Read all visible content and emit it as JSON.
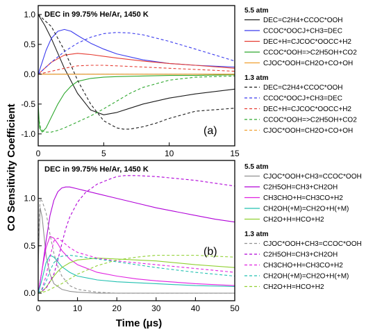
{
  "figure": {
    "ylabel": "CO Sensitivity Coefficient",
    "xlabel": "Time (μs)"
  },
  "chart_data": [
    {
      "type": "line",
      "panel_label": "(a)",
      "title": "DEC in 99.75% He/Ar, 1450 K",
      "xlim": [
        0,
        15
      ],
      "ylim": [
        -1.2,
        1.15
      ],
      "x_ticks": [
        0,
        5,
        10,
        15
      ],
      "y_ticks": [
        -1.0,
        -0.5,
        0.0,
        0.5,
        1.0
      ],
      "x_tick_labels": [
        "0",
        "5",
        "10",
        "15"
      ],
      "y_tick_labels": [
        "-1.0",
        "-0.5",
        "0.0",
        "0.5",
        "1.0"
      ],
      "zero_line": true,
      "legend_groups": [
        {
          "title": "5.5 atm",
          "dash": "solid"
        },
        {
          "title": "1.3 atm",
          "dash": "dashed"
        }
      ],
      "series": [
        {
          "name": "DEC=C2H4+CCOC*OOH",
          "group": 0,
          "color": "#1a1a1a",
          "x": [
            0,
            0.5,
            1,
            1.5,
            2,
            3,
            4,
            5,
            6,
            7,
            8,
            10,
            12,
            15
          ],
          "y": [
            1.0,
            0.82,
            0.6,
            0.35,
            0.1,
            -0.32,
            -0.6,
            -0.68,
            -0.64,
            -0.57,
            -0.5,
            -0.4,
            -0.33,
            -0.25
          ]
        },
        {
          "name": "CCOC*OOCJ+CH3=DEC",
          "group": 0,
          "color": "#3a3aee",
          "x": [
            0,
            0.3,
            0.6,
            1,
            1.5,
            2,
            2.5,
            3,
            4,
            5,
            6,
            8,
            10,
            12,
            15
          ],
          "y": [
            0.0,
            0.2,
            0.4,
            0.6,
            0.72,
            0.75,
            0.72,
            0.65,
            0.52,
            0.42,
            0.34,
            0.24,
            0.18,
            0.15,
            0.12
          ]
        },
        {
          "name": "DEC+H=CJCOC*OOCC+H2",
          "group": 0,
          "color": "#e63c32",
          "x": [
            0,
            0.5,
            1,
            2,
            3,
            4,
            5,
            6,
            8,
            10,
            12,
            15
          ],
          "y": [
            0.0,
            0.1,
            0.2,
            0.32,
            0.35,
            0.33,
            0.3,
            0.27,
            0.22,
            0.18,
            0.15,
            0.1
          ]
        },
        {
          "name": "CCOC*OOH=>C2H5OH+CO2",
          "group": 0,
          "color": "#2ea82e",
          "x": [
            0,
            0.1,
            0.3,
            0.6,
            1,
            1.5,
            2,
            2.5,
            3,
            4,
            5,
            6,
            8,
            10,
            12,
            15
          ],
          "y": [
            -0.5,
            -0.9,
            -0.97,
            -0.9,
            -0.72,
            -0.5,
            -0.32,
            -0.2,
            -0.12,
            -0.07,
            -0.05,
            -0.04,
            -0.03,
            -0.02,
            -0.02,
            -0.01
          ]
        },
        {
          "name": "CJOC*OOH=CH2O+CO+OH",
          "group": 0,
          "color": "#f0a030",
          "x": [
            0,
            15
          ],
          "y": [
            0.0,
            0.0
          ]
        },
        {
          "name": "DEC=C2H4+CCOC*OOH",
          "group": 1,
          "color": "#1a1a1a",
          "x": [
            0,
            1,
            2,
            3,
            4,
            5,
            6,
            6.5,
            7,
            8,
            9,
            10,
            12,
            15
          ],
          "y": [
            1.0,
            0.8,
            0.4,
            -0.1,
            -0.5,
            -0.78,
            -0.9,
            -0.92,
            -0.92,
            -0.88,
            -0.82,
            -0.74,
            -0.62,
            -0.57
          ]
        },
        {
          "name": "CCOC*OOCJ+CH3=DEC",
          "group": 1,
          "color": "#3a3aee",
          "x": [
            0,
            0.5,
            1,
            2,
            3,
            4,
            5,
            6,
            7,
            8,
            10,
            12,
            15
          ],
          "y": [
            0.0,
            0.1,
            0.2,
            0.38,
            0.52,
            0.62,
            0.68,
            0.7,
            0.69,
            0.66,
            0.55,
            0.42,
            0.22
          ]
        },
        {
          "name": "DEC+H=CJCOC*OOCC+H2",
          "group": 1,
          "color": "#e63c32",
          "x": [
            0,
            1,
            2,
            3,
            4,
            5,
            6,
            8,
            10,
            12,
            15
          ],
          "y": [
            0.0,
            0.05,
            0.1,
            0.14,
            0.15,
            0.15,
            0.14,
            0.12,
            0.1,
            0.08,
            0.05
          ]
        },
        {
          "name": "CCOC*OOH=>C2H5OH+CO2",
          "group": 1,
          "color": "#2ea82e",
          "x": [
            0,
            0.2,
            0.5,
            1,
            1.5,
            2,
            3,
            4,
            5,
            6,
            7,
            8,
            10,
            12,
            15
          ],
          "y": [
            -0.7,
            -0.92,
            -0.97,
            -0.97,
            -0.94,
            -0.9,
            -0.8,
            -0.7,
            -0.58,
            -0.45,
            -0.32,
            -0.22,
            -0.1,
            -0.05,
            -0.03
          ]
        },
        {
          "name": "CJOC*OOH=CH2O+CO+OH",
          "group": 1,
          "color": "#f0a030",
          "x": [
            0,
            15
          ],
          "y": [
            0.0,
            0.0
          ]
        }
      ]
    },
    {
      "type": "line",
      "panel_label": "(b)",
      "title": "DEC in 99.75% He/Ar, 1450 K",
      "xlim": [
        0,
        50
      ],
      "ylim": [
        -0.08,
        1.4
      ],
      "x_ticks": [
        0,
        10,
        20,
        30,
        40,
        50
      ],
      "y_ticks": [
        0.0,
        0.5,
        1.0
      ],
      "x_tick_labels": [
        "0",
        "10",
        "20",
        "30",
        "40",
        "50"
      ],
      "y_tick_labels": [
        "0.0",
        "0.5",
        "1.0"
      ],
      "zero_line": false,
      "legend_groups": [
        {
          "title": "5.5 atm",
          "dash": "solid"
        },
        {
          "title": "1.3 atm",
          "dash": "dashed"
        }
      ],
      "series": [
        {
          "name": "CJOC*OOH+CH3=CCOC*OOH",
          "group": 0,
          "color": "#909090",
          "x": [
            0,
            0.5,
            1,
            1.5,
            2,
            3,
            4,
            6,
            8,
            10,
            15,
            20,
            30,
            40,
            50
          ],
          "y": [
            0.3,
            0.9,
            0.8,
            0.6,
            0.4,
            0.2,
            0.1,
            0.04,
            0.02,
            0.01,
            0.0,
            0.0,
            0.0,
            0.0,
            0.0
          ]
        },
        {
          "name": "C2H5OH=CH3+CH2OH",
          "group": 0,
          "color": "#b000d8",
          "x": [
            0,
            1,
            2,
            3,
            4,
            5,
            6,
            7,
            8,
            10,
            12,
            15,
            20,
            25,
            30,
            35,
            40,
            45,
            50
          ],
          "y": [
            0.0,
            0.25,
            0.55,
            0.82,
            0.98,
            1.07,
            1.11,
            1.12,
            1.12,
            1.1,
            1.08,
            1.05,
            1.0,
            0.95,
            0.9,
            0.86,
            0.82,
            0.78,
            0.75
          ]
        },
        {
          "name": "CH3CHO+H=CH3CO+H2",
          "group": 0,
          "color": "#e020e0",
          "x": [
            0,
            1,
            2,
            3,
            4,
            5,
            6,
            8,
            10,
            15,
            20,
            25,
            30,
            40,
            50
          ],
          "y": [
            0.0,
            0.25,
            0.48,
            0.6,
            0.58,
            0.52,
            0.45,
            0.36,
            0.3,
            0.22,
            0.18,
            0.15,
            0.13,
            0.1,
            0.08
          ]
        },
        {
          "name": "CH2OH(+M)=CH2O+H(+M)",
          "group": 0,
          "color": "#20c0b0",
          "x": [
            0,
            1,
            2,
            3,
            4,
            5,
            6,
            8,
            10,
            15,
            20,
            30,
            40,
            50
          ],
          "y": [
            0.0,
            0.15,
            0.32,
            0.4,
            0.38,
            0.33,
            0.28,
            0.22,
            0.18,
            0.14,
            0.12,
            0.1,
            0.08,
            0.07
          ]
        },
        {
          "name": "CH2O+H=HCO+H2",
          "group": 0,
          "color": "#90d030",
          "x": [
            0,
            1,
            2,
            3,
            4,
            5,
            6,
            8,
            10,
            15,
            20,
            25,
            30,
            40,
            50
          ],
          "y": [
            0.0,
            0.02,
            0.06,
            0.12,
            0.18,
            0.23,
            0.27,
            0.32,
            0.35,
            0.37,
            0.36,
            0.35,
            0.34,
            0.3,
            0.27
          ]
        },
        {
          "name": "CJOC*OOH+CH3=CCOC*OOH",
          "group": 1,
          "color": "#909090",
          "x": [
            0,
            0.5,
            1,
            2,
            3,
            4,
            5,
            6,
            8,
            10,
            15,
            20,
            30,
            40,
            50
          ],
          "y": [
            0.5,
            1.0,
            0.97,
            0.85,
            0.62,
            0.42,
            0.28,
            0.18,
            0.08,
            0.04,
            0.01,
            0.0,
            0.0,
            0.0,
            0.0
          ]
        },
        {
          "name": "C2H5OH=CH3+CH2OH",
          "group": 1,
          "color": "#b000d8",
          "x": [
            0,
            2,
            4,
            5,
            6,
            7,
            8,
            10,
            12,
            15,
            18,
            20,
            22,
            25,
            30,
            35,
            40,
            45,
            50
          ],
          "y": [
            0.0,
            0.05,
            0.2,
            0.35,
            0.52,
            0.68,
            0.8,
            0.96,
            1.06,
            1.15,
            1.2,
            1.23,
            1.24,
            1.24,
            1.23,
            1.21,
            1.19,
            1.16,
            1.13
          ]
        },
        {
          "name": "CH3CHO+H=CH3CO+H2",
          "group": 1,
          "color": "#e020e0",
          "x": [
            0,
            1,
            2,
            3,
            4,
            5,
            6,
            8,
            10,
            15,
            20,
            25,
            30,
            40,
            50
          ],
          "y": [
            0.0,
            0.05,
            0.18,
            0.38,
            0.55,
            0.58,
            0.55,
            0.48,
            0.43,
            0.37,
            0.34,
            0.32,
            0.3,
            0.26,
            0.22
          ]
        },
        {
          "name": "CH2OH(+M)=CH2O+H(+M)",
          "group": 1,
          "color": "#20c0b0",
          "x": [
            0,
            1,
            2,
            3,
            4,
            5,
            6,
            8,
            10,
            15,
            20,
            25,
            30,
            40,
            50
          ],
          "y": [
            0.0,
            0.04,
            0.12,
            0.24,
            0.32,
            0.37,
            0.39,
            0.4,
            0.39,
            0.36,
            0.33,
            0.3,
            0.27,
            0.22,
            0.18
          ]
        },
        {
          "name": "CH2O+H=HCO+H2",
          "group": 1,
          "color": "#90d030",
          "x": [
            0,
            2,
            4,
            6,
            8,
            10,
            15,
            20,
            25,
            30,
            35,
            40,
            45,
            50
          ],
          "y": [
            0.0,
            0.02,
            0.06,
            0.1,
            0.15,
            0.2,
            0.29,
            0.35,
            0.38,
            0.4,
            0.4,
            0.4,
            0.39,
            0.38
          ]
        }
      ]
    }
  ]
}
